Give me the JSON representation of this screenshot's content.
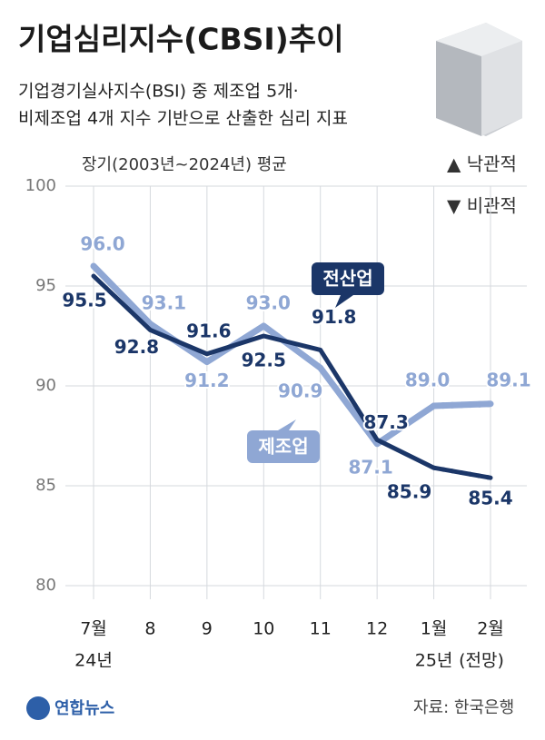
{
  "chart_data": {
    "type": "line",
    "title": "기업심리지수(CBSI)추이",
    "subtitle": [
      "기업경기실사지수(BSI) 중 제조업 5개·",
      "비제조업 4개 지수 기반으로 산출한 심리 지표"
    ],
    "reference_label": "장기(2003년~2024년) 평균",
    "annotations": [
      "▲ 낙관적",
      "▼ 비관적"
    ],
    "categories": [
      "7월",
      "8",
      "9",
      "10",
      "11",
      "12",
      "1월",
      "2월"
    ],
    "category_sublabels": [
      "24년",
      null,
      null,
      null,
      null,
      null,
      "25년",
      "(전망)"
    ],
    "series": [
      {
        "name": "제조업",
        "color": "#8fa7d4",
        "values": [
          96.0,
          93.1,
          91.2,
          93.0,
          90.9,
          87.1,
          89.0,
          89.1
        ],
        "value_labels": [
          "96.0",
          "93.1",
          "91.2",
          "93.0",
          "90.9",
          "87.1",
          "89.0",
          "89.1"
        ]
      },
      {
        "name": "전산업",
        "color": "#1b3668",
        "values": [
          95.5,
          92.8,
          91.6,
          92.5,
          91.8,
          87.3,
          85.9,
          85.4
        ],
        "value_labels": [
          "95.5",
          "92.8",
          "91.6",
          "92.5",
          "91.8",
          "87.3",
          "85.9",
          "85.4"
        ]
      }
    ],
    "dashed_last_segment": true,
    "ylim": [
      80,
      100
    ],
    "yticks": [
      80,
      85,
      90,
      95,
      100
    ],
    "grid": true,
    "source": "자료: 한국은행",
    "logo": "연합뉴스"
  }
}
